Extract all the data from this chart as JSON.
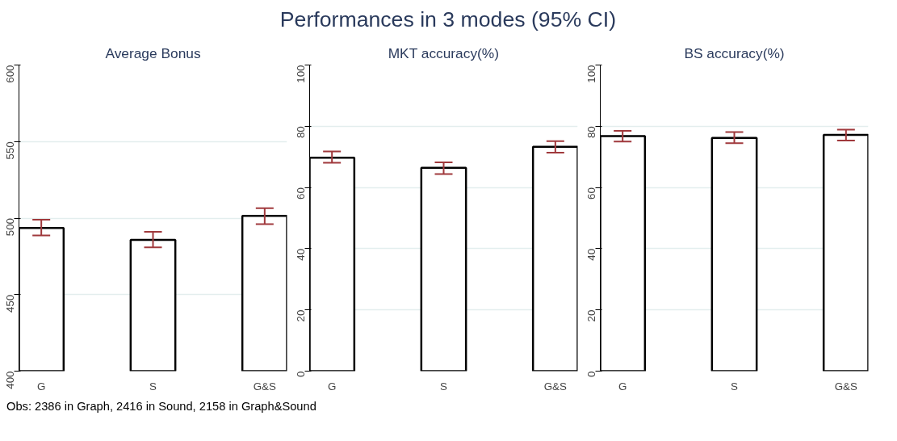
{
  "chart_data": [
    {
      "type": "bar",
      "title": "Average Bonus",
      "categories": [
        "G",
        "S",
        "G&S"
      ],
      "values": [
        493.6,
        485.8,
        501.5
      ],
      "color": "#ffffff",
      "errors": [
        [
          488.7,
          499.0
        ],
        [
          480.9,
          491.0
        ],
        [
          496.0,
          506.5
        ]
      ],
      "ylim": [
        400,
        600
      ],
      "yticks": [
        400,
        450,
        500,
        550,
        600
      ],
      "grid": "y",
      "annotations": [
        "Performances in 3 modes (95% CI)",
        "Obs: 2386 in Graph, 2416 in Sound, 2158 in Graph&Sound"
      ]
    },
    {
      "type": "bar",
      "title": "MKT accuracy(%)",
      "categories": [
        "G",
        "S",
        "G&S"
      ],
      "values": [
        69.7,
        66.4,
        73.3
      ],
      "color": "#ffffff",
      "errors": [
        [
          68.1,
          71.8
        ],
        [
          64.4,
          68.2
        ],
        [
          71.4,
          75.1
        ]
      ],
      "ylim": [
        0,
        100
      ],
      "yticks": [
        0,
        20,
        40,
        60,
        80,
        100
      ],
      "grid": "y"
    },
    {
      "type": "bar",
      "title": "BS accuracy(%)",
      "categories": [
        "G",
        "S",
        "G&S"
      ],
      "values": [
        76.8,
        76.2,
        77.2
      ],
      "color": "#ffffff",
      "errors": [
        [
          75.0,
          78.5
        ],
        [
          74.5,
          78.1
        ],
        [
          75.3,
          78.9
        ]
      ],
      "ylim": [
        0,
        100
      ],
      "yticks": [
        0,
        20,
        40,
        60,
        80,
        100
      ],
      "grid": "y"
    }
  ]
}
